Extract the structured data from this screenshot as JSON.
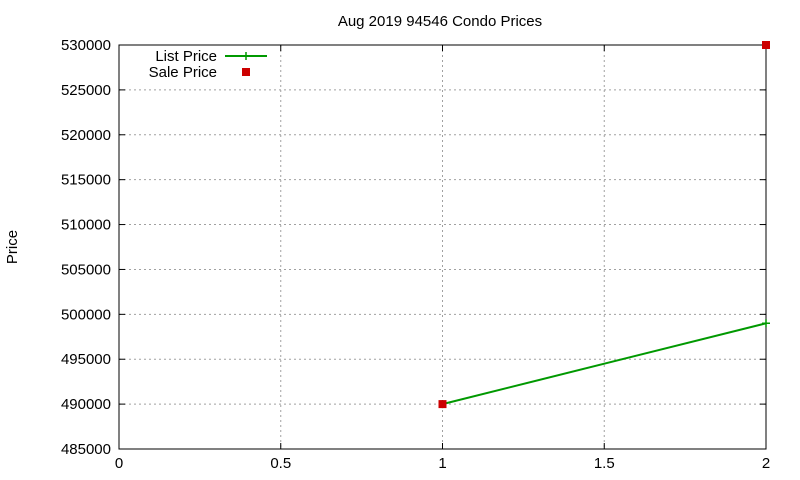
{
  "chart_data": {
    "type": "line",
    "title": "Aug 2019 94546 Condo Prices",
    "xlabel": "",
    "ylabel": "Price",
    "xlim": [
      0,
      2
    ],
    "ylim": [
      485000,
      530000
    ],
    "xticks": [
      "0",
      "0.5",
      "1",
      "1.5",
      "2"
    ],
    "yticks": [
      "485000",
      "490000",
      "495000",
      "500000",
      "505000",
      "510000",
      "515000",
      "520000",
      "525000",
      "530000"
    ],
    "grid": true,
    "legend_position": "top-left",
    "series": [
      {
        "name": "List Price",
        "style": "line-with-plus-markers",
        "color": "#009900",
        "points": [
          {
            "x": 1,
            "y": 490000
          },
          {
            "x": 2,
            "y": 499000
          }
        ]
      },
      {
        "name": "Sale Price",
        "style": "square-markers",
        "color": "#cc0000",
        "points": [
          {
            "x": 1,
            "y": 490000
          },
          {
            "x": 2,
            "y": 530000
          }
        ]
      }
    ]
  }
}
